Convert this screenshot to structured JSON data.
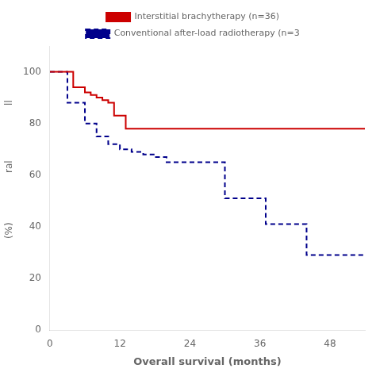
{
  "chart_data": {
    "type": "step",
    "xlabel": "Overall survival (months)",
    "annotations": [
      "ll",
      "ral",
      "(%)"
    ],
    "xlim": [
      0,
      54
    ],
    "ylim": [
      0,
      110
    ],
    "xticks": [
      0,
      12,
      24,
      36,
      48
    ],
    "yticks": [
      0,
      20,
      40,
      60,
      80,
      100
    ],
    "grid": false,
    "legend": "top",
    "series": [
      {
        "name": "Interstitial brachytherapy (n=36)",
        "color": "#cc0000",
        "line_style": "solid",
        "x": [
          0,
          4,
          4,
          6,
          6,
          7,
          7,
          8,
          8,
          9,
          9,
          10,
          10,
          11,
          11,
          13,
          13,
          20,
          20,
          54
        ],
        "values": [
          100,
          100,
          94,
          94,
          92,
          92,
          91,
          91,
          90,
          90,
          89,
          89,
          88,
          88,
          83,
          83,
          78,
          78,
          78,
          78
        ]
      },
      {
        "name": "Conventional after-load radiotherapy (n=3",
        "color": "#00008b",
        "line_style": "dashed",
        "x": [
          0,
          3,
          3,
          6,
          6,
          8,
          8,
          10,
          10,
          12,
          12,
          14,
          14,
          16,
          16,
          18,
          18,
          20,
          20,
          22,
          22,
          30,
          30,
          32,
          32,
          34,
          34,
          37,
          37,
          38,
          38,
          42,
          42,
          44,
          44,
          47,
          47,
          50,
          50,
          54
        ],
        "values": [
          100,
          100,
          88,
          88,
          80,
          80,
          75,
          75,
          72,
          72,
          70,
          70,
          69,
          69,
          68,
          68,
          67,
          67,
          65,
          65,
          65,
          65,
          51,
          51,
          51,
          51,
          51,
          51,
          51,
          41,
          41,
          41,
          41,
          41,
          41,
          29,
          29,
          29,
          29,
          29
        ]
      }
    ]
  }
}
